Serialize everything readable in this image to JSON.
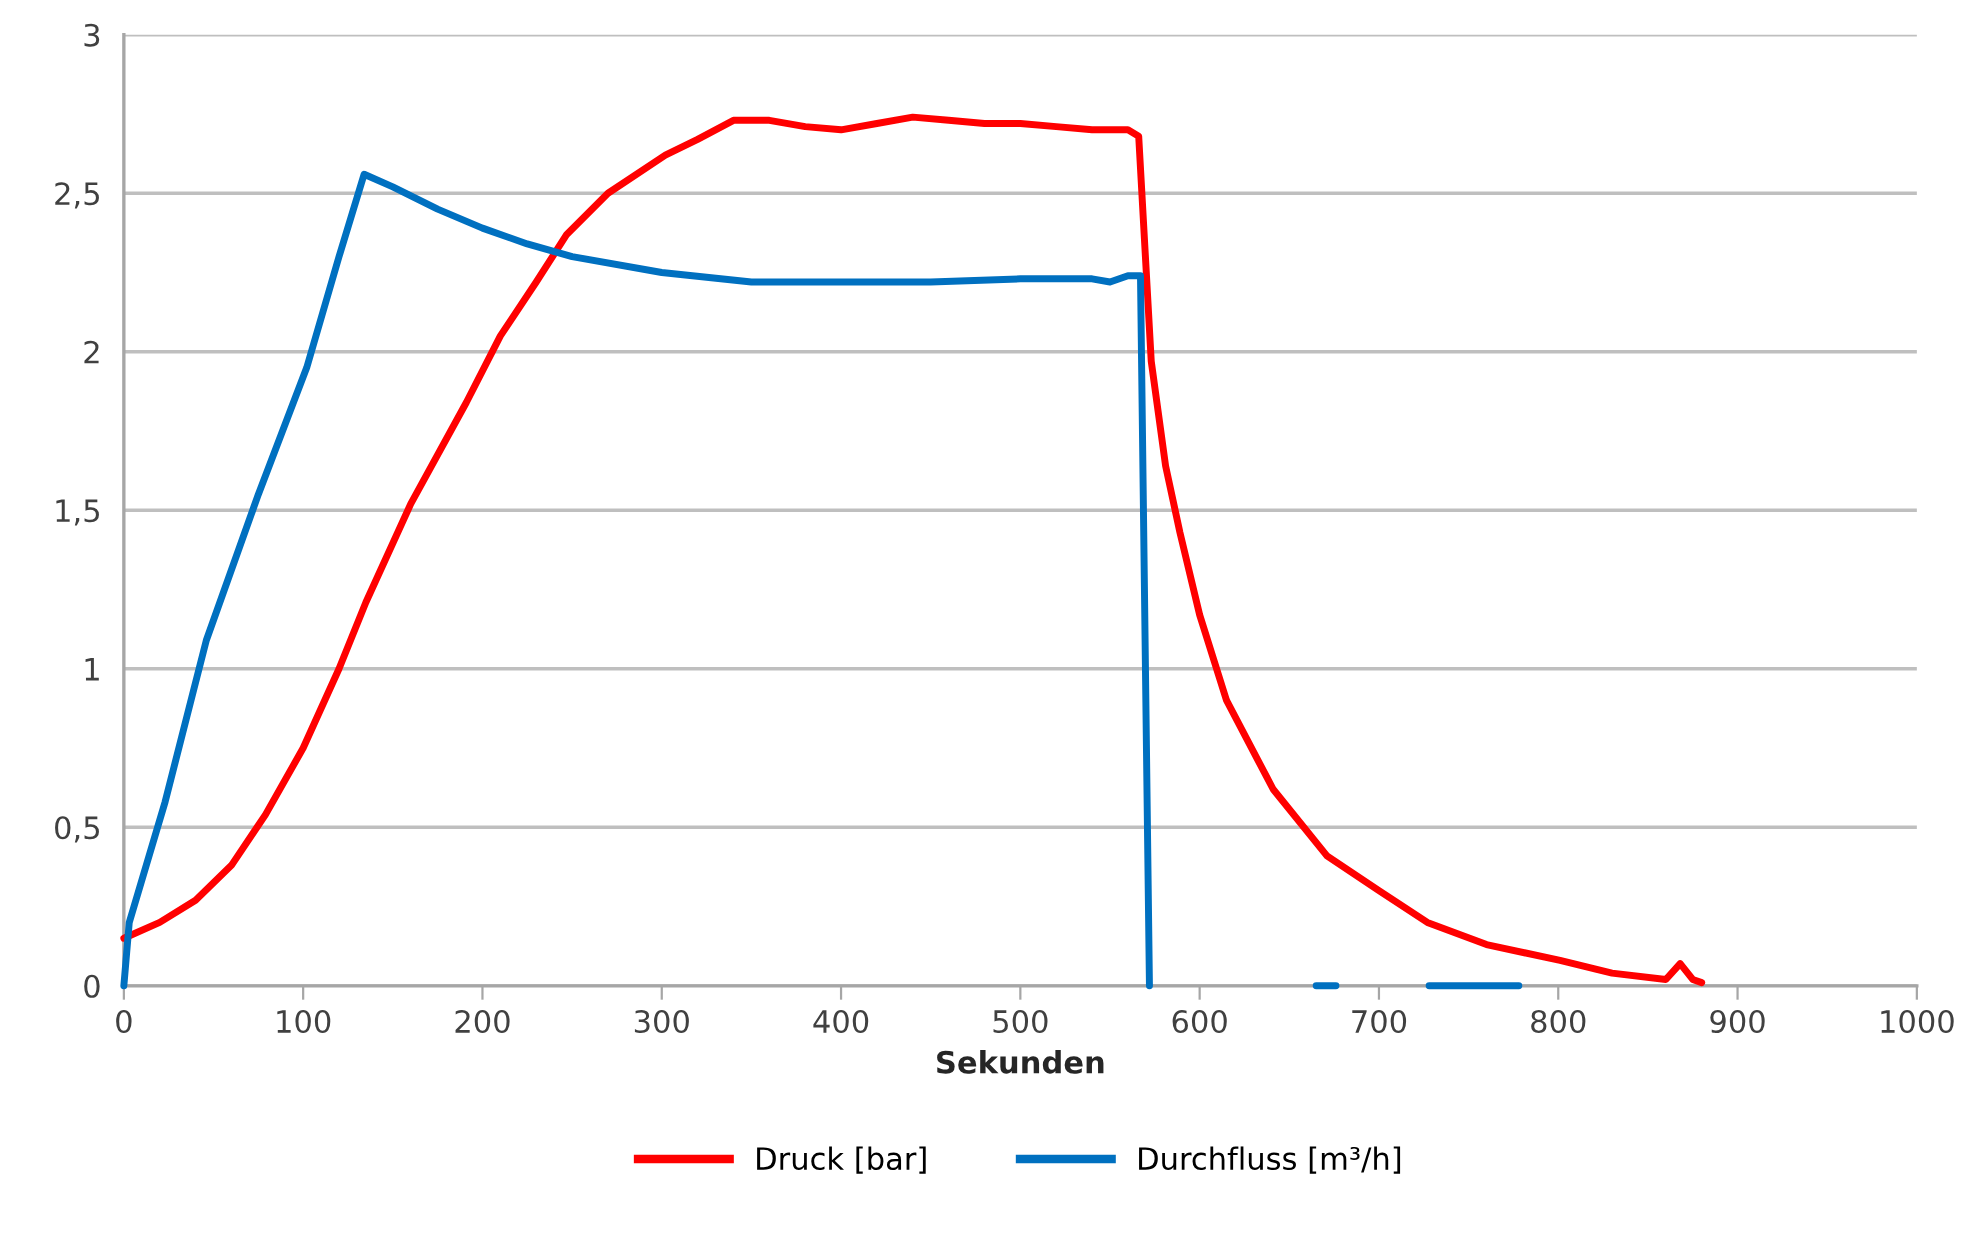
{
  "chart_data": {
    "type": "line",
    "xlabel": "Sekunden",
    "xlim": [
      0,
      1000
    ],
    "xticks": [
      0,
      100,
      200,
      300,
      400,
      500,
      600,
      700,
      800,
      900,
      1000
    ],
    "ylim": [
      0,
      3
    ],
    "yticks": [
      0,
      {
        "value": 0.5,
        "label": "0,5"
      },
      1,
      {
        "value": 1.5,
        "label": "1,5"
      },
      2,
      {
        "value": 2.5,
        "label": "2,5"
      },
      3
    ],
    "grid": "y",
    "legend": "bottom",
    "marker": "none",
    "line_style": "solid",
    "series": [
      {
        "name": "Druck [bar]",
        "color": "#ff0000",
        "x": [
          0,
          20,
          40,
          60,
          79,
          100,
          120,
          135,
          160,
          191,
          210,
          230,
          247,
          270,
          302,
          320,
          340,
          360,
          380,
          400,
          420,
          440,
          460,
          480,
          500,
          520,
          540,
          560,
          566,
          573,
          581,
          589,
          600,
          615,
          641,
          671,
          700,
          727,
          760,
          801,
          830,
          860,
          868,
          875,
          880
        ],
        "values": [
          0.15,
          0.2,
          0.27,
          0.38,
          0.54,
          0.75,
          1.0,
          1.21,
          1.52,
          1.84,
          2.05,
          2.22,
          2.37,
          2.5,
          2.62,
          2.67,
          2.73,
          2.73,
          2.71,
          2.7,
          2.72,
          2.74,
          2.73,
          2.72,
          2.72,
          2.71,
          2.7,
          2.7,
          2.68,
          1.97,
          1.64,
          1.43,
          1.17,
          0.9,
          0.62,
          0.41,
          0.3,
          0.2,
          0.13,
          0.08,
          0.04,
          0.02,
          0.07,
          0.02,
          0.01
        ]
      },
      {
        "name": "Durchfluss [m³/h]",
        "color": "#0070c0",
        "x": [
          0,
          3,
          23,
          46,
          75,
          102,
          120,
          134,
          150,
          175,
          200,
          225,
          250,
          300,
          350,
          400,
          450,
          500,
          540,
          550,
          560,
          567,
          572,
          620,
          665,
          676,
          700,
          728,
          778
        ],
        "values": [
          0,
          0.2,
          0.58,
          1.09,
          1.55,
          1.95,
          2.3,
          2.56,
          2.52,
          2.45,
          2.39,
          2.34,
          2.3,
          2.25,
          2.22,
          2.22,
          2.22,
          2.23,
          2.23,
          2.22,
          2.24,
          2.24,
          0,
          null,
          0,
          0,
          null,
          0,
          0
        ]
      }
    ]
  }
}
